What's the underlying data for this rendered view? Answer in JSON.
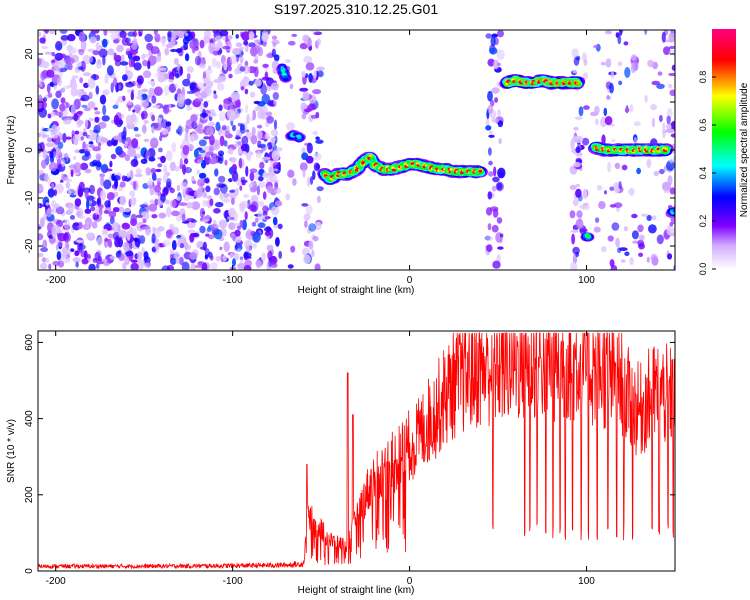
{
  "title": "S197.2025.310.12.25.G01",
  "chart_data": [
    {
      "type": "heatmap",
      "xlabel": "Height of straight line (km)",
      "ylabel": "Frequency (Hz)",
      "xlim": [
        -210,
        150
      ],
      "ylim": [
        -25,
        25
      ],
      "xticks": [
        -200,
        -100,
        0,
        100
      ],
      "yticks": [
        -20,
        -10,
        0,
        10,
        20
      ],
      "colorbar": {
        "label": "Normalized spectral amplitude",
        "range": [
          0,
          1
        ],
        "ticks": [
          "0.0",
          "0.2",
          "0.4",
          "0.6",
          "0.8"
        ],
        "colors": [
          "#ffffff",
          "#7f00ff",
          "#0000ff",
          "#00ffff",
          "#00ff00",
          "#ffff00",
          "#ff0000",
          "#ff0080"
        ]
      },
      "noise_regions": [
        {
          "x": [
            -210,
            -73
          ],
          "density": "high"
        },
        {
          "x": [
            -60,
            -50
          ],
          "density": "medium"
        },
        {
          "x": [
            -69,
            -65
          ],
          "density": "low"
        },
        {
          "x": [
            44,
            52
          ],
          "density": "medium"
        },
        {
          "x": [
            92,
            100
          ],
          "density": "medium"
        },
        {
          "x": [
            104,
            150
          ],
          "density": "low"
        },
        {
          "x": [
            146,
            150
          ],
          "density": "medium"
        }
      ],
      "tracks": [
        {
          "points": [
            [
              -72,
              17
            ],
            [
              -71,
              16
            ],
            [
              -70,
              15
            ]
          ],
          "peak": 0.55
        },
        {
          "points": [
            [
              -67,
              3
            ],
            [
              -65,
              3
            ],
            [
              -62,
              2.5
            ]
          ],
          "peak": 0.5
        },
        {
          "points": [
            [
              -48,
              -5
            ],
            [
              -45,
              -6
            ],
            [
              -40,
              -5
            ],
            [
              -35,
              -5
            ],
            [
              -30,
              -4
            ],
            [
              -25,
              -2
            ],
            [
              -22,
              -1.5
            ],
            [
              -20,
              -3
            ],
            [
              -15,
              -4
            ],
            [
              -10,
              -4
            ],
            [
              -5,
              -3.5
            ],
            [
              0,
              -3
            ],
            [
              5,
              -3
            ],
            [
              10,
              -3.5
            ],
            [
              15,
              -4
            ],
            [
              20,
              -4
            ],
            [
              25,
              -4.5
            ],
            [
              30,
              -4.5
            ],
            [
              35,
              -4.5
            ],
            [
              40,
              -4.5
            ]
          ],
          "peak": 0.95
        },
        {
          "points": [
            [
              55,
              14
            ],
            [
              60,
              14.5
            ],
            [
              65,
              14
            ],
            [
              70,
              14
            ],
            [
              75,
              14.5
            ],
            [
              80,
              14
            ],
            [
              85,
              14
            ],
            [
              90,
              14
            ],
            [
              95,
              14
            ]
          ],
          "peak": 1.0
        },
        {
          "points": [
            [
              100,
              -18
            ],
            [
              101,
              -18
            ]
          ],
          "peak": 0.6
        },
        {
          "points": [
            [
              105,
              0.5
            ],
            [
              110,
              0
            ],
            [
              115,
              0
            ],
            [
              120,
              0
            ],
            [
              125,
              0
            ],
            [
              130,
              0
            ],
            [
              135,
              0
            ],
            [
              140,
              0
            ],
            [
              145,
              0
            ]
          ],
          "peak": 0.95
        },
        {
          "points": [
            [
              148,
              -13
            ],
            [
              150,
              -13
            ]
          ],
          "peak": 0.5
        }
      ]
    },
    {
      "type": "line",
      "xlabel": "Height of straight line (km)",
      "ylabel": "SNR (10 * v/v)",
      "xlim": [
        -210,
        150
      ],
      "ylim": [
        0,
        630
      ],
      "xticks": [
        -200,
        -100,
        0,
        100
      ],
      "yticks": [
        0,
        200,
        400,
        600
      ],
      "color": "#ff0000",
      "envelope": [
        [
          -210,
          20
        ],
        [
          -150,
          20
        ],
        [
          -100,
          22
        ],
        [
          -70,
          25
        ],
        [
          -60,
          30
        ],
        [
          -58,
          150
        ],
        [
          -55,
          130
        ],
        [
          -50,
          110
        ],
        [
          -45,
          80
        ],
        [
          -40,
          70
        ],
        [
          -35,
          70
        ],
        [
          -30,
          140
        ],
        [
          -25,
          200
        ],
        [
          -20,
          240
        ],
        [
          -10,
          280
        ],
        [
          0,
          330
        ],
        [
          5,
          350
        ],
        [
          10,
          390
        ],
        [
          15,
          420
        ],
        [
          20,
          460
        ],
        [
          25,
          490
        ],
        [
          30,
          510
        ],
        [
          40,
          530
        ],
        [
          50,
          540
        ],
        [
          60,
          550
        ],
        [
          70,
          550
        ],
        [
          80,
          550
        ],
        [
          90,
          550
        ],
        [
          100,
          540
        ],
        [
          110,
          520
        ],
        [
          120,
          490
        ],
        [
          125,
          440
        ],
        [
          130,
          420
        ],
        [
          135,
          450
        ],
        [
          140,
          470
        ],
        [
          145,
          460
        ],
        [
          150,
          450
        ]
      ],
      "spikes_up": [
        [
          -35,
          520
        ],
        [
          -32,
          410
        ],
        [
          -58,
          280
        ]
      ],
      "dropouts": [
        47,
        65,
        68,
        72,
        77,
        81,
        85,
        88,
        92,
        97,
        101,
        106,
        112,
        117,
        121,
        126,
        137,
        141,
        146,
        149
      ]
    }
  ]
}
